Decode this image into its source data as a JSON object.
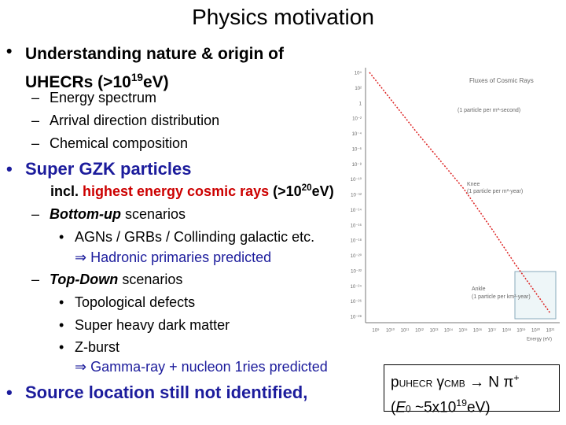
{
  "title": "Physics motivation",
  "items": [
    {
      "parts": [
        "Understanding nature & origin of UHECRs (>10",
        "19",
        "eV)"
      ],
      "sub": [
        "Energy spectrum",
        "Arrival direction distribution",
        "Chemical composition"
      ]
    },
    {
      "text": "Super GZK particles",
      "detail": [
        "incl. ",
        "highest energy cosmic rays",
        " (>10",
        "20",
        "eV)"
      ],
      "scenarios": [
        {
          "name": "Bottom-up",
          "rest": " scenarios",
          "points": [
            "AGNs / GRBs / Collinding galactic etc."
          ],
          "result": "⇒ Hadronic primaries predicted"
        },
        {
          "name": "Top-Down",
          "rest": " scenarios",
          "points": [
            "Topological defects",
            "Super heavy dark matter",
            "Z-burst"
          ],
          "result": "⇒ Gamma-ray + nucleon 1ries predicted"
        }
      ]
    },
    {
      "text": "Source location still not identified,"
    }
  ],
  "figure": {
    "title": "Fluxes of Cosmic Rays",
    "annotations": [
      "(1 particle per m²-second)",
      "Knee",
      "(1 particle per m²-year)",
      "Ankle",
      "(1 particle per km²-year)"
    ],
    "x_label": "Energy (eV)",
    "yticks": [
      "10⁴",
      "10²",
      "1",
      "10⁻²",
      "10⁻⁴",
      "10⁻⁶",
      "10⁻⁸",
      "10⁻¹⁰",
      "10⁻¹²",
      "10⁻¹⁴",
      "10⁻¹⁶",
      "10⁻¹⁸",
      "10⁻²⁰",
      "10⁻²²",
      "10⁻²⁴",
      "10⁻²⁶",
      "10⁻²⁸"
    ],
    "xticks": [
      "10⁹",
      "10¹⁰",
      "10¹¹",
      "10¹²",
      "10¹³",
      "10¹⁴",
      "10¹⁵",
      "10¹⁶",
      "10¹⁷",
      "10¹⁸",
      "10¹⁹",
      "10²⁰",
      "10²¹"
    ]
  },
  "box": {
    "line1": [
      "p",
      "UHECR",
      " γ",
      "CMB",
      " → N π",
      "+"
    ],
    "line2": [
      "(",
      "E",
      "0",
      " ~5x10",
      "19",
      "eV)"
    ]
  }
}
